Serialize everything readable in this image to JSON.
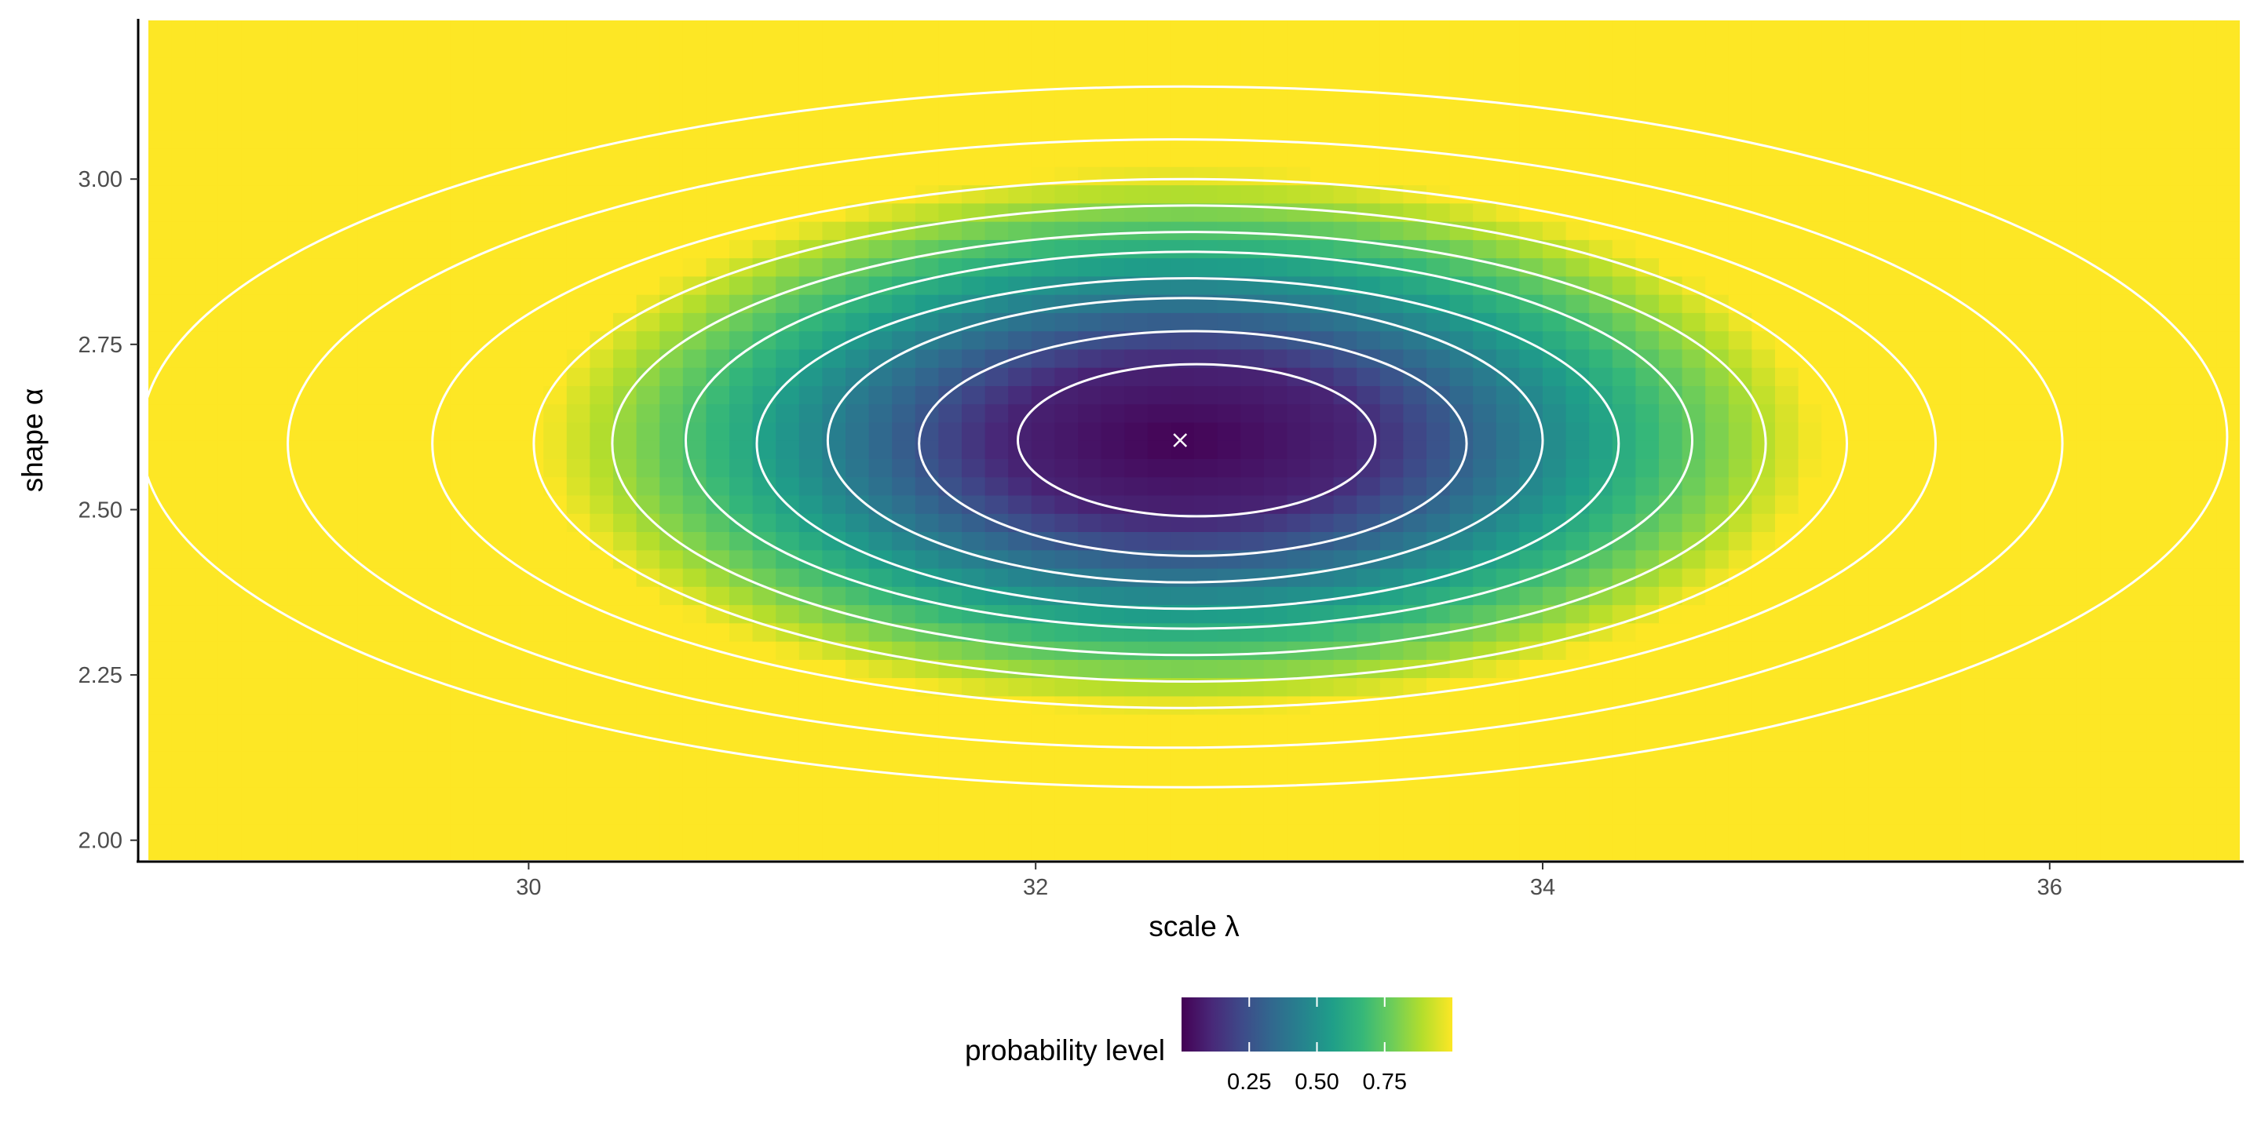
{
  "chart_data": {
    "type": "heatmap",
    "title": "",
    "xlabel": "scale λ",
    "ylabel": "shape α",
    "xlim": [
      28.5,
      36.75
    ],
    "ylim": [
      1.97,
      3.24
    ],
    "x_ticks": [
      {
        "value": 30,
        "label": "30"
      },
      {
        "value": 32,
        "label": "32"
      },
      {
        "value": 34,
        "label": "34"
      },
      {
        "value": 36,
        "label": "36"
      }
    ],
    "y_ticks": [
      {
        "value": 2.0,
        "label": "2.00"
      },
      {
        "value": 2.25,
        "label": "2.25"
      },
      {
        "value": 2.5,
        "label": "2.50"
      },
      {
        "value": 2.75,
        "label": "2.75"
      },
      {
        "value": 3.0,
        "label": "3.00"
      }
    ],
    "fill_variable": "probability level",
    "colormap": "viridis",
    "colormap_stops": [
      "#440154",
      "#482878",
      "#3E4A89",
      "#31688E",
      "#26828E",
      "#1F9E89",
      "#35B779",
      "#6DCD59",
      "#B4DE2C",
      "#FDE725"
    ],
    "fill_range": [
      0,
      1
    ],
    "optimum": {
      "x": 32.57,
      "y": 2.605,
      "marker": "×",
      "color": "#ffffff"
    },
    "contour_levels": [
      0.1,
      0.2,
      0.3,
      0.4,
      0.5,
      0.6,
      0.7,
      0.8,
      0.9,
      0.95
    ],
    "contours": [
      {
        "level": 0.1,
        "x_min": 31.93,
        "x_max": 33.34,
        "y_min": 2.49,
        "y_max": 2.72
      },
      {
        "level": 0.2,
        "x_min": 31.54,
        "x_max": 33.7,
        "y_min": 2.43,
        "y_max": 2.77
      },
      {
        "level": 0.3,
        "x_min": 31.18,
        "x_max": 34.0,
        "y_min": 2.39,
        "y_max": 2.82
      },
      {
        "level": 0.4,
        "x_min": 30.9,
        "x_max": 34.3,
        "y_min": 2.35,
        "y_max": 2.85
      },
      {
        "level": 0.5,
        "x_min": 30.62,
        "x_max": 34.59,
        "y_min": 2.32,
        "y_max": 2.89
      },
      {
        "level": 0.6,
        "x_min": 30.33,
        "x_max": 34.88,
        "y_min": 2.28,
        "y_max": 2.92
      },
      {
        "level": 0.7,
        "x_min": 30.02,
        "x_max": 35.2,
        "y_min": 2.24,
        "y_max": 2.96
      },
      {
        "level": 0.8,
        "x_min": 29.62,
        "x_max": 35.55,
        "y_min": 2.2,
        "y_max": 3.0
      },
      {
        "level": 0.9,
        "x_min": 29.05,
        "x_max": 36.05,
        "y_min": 2.14,
        "y_max": 3.06
      },
      {
        "level": 0.95,
        "x_min": 28.47,
        "x_max": 36.7,
        "y_min": 2.08,
        "y_max": 3.14
      }
    ],
    "contour_color": "#ffffff",
    "grid": false,
    "legend": {
      "title": "probability level",
      "position": "bottom",
      "ticks": [
        {
          "value": 0.25,
          "label": "0.25"
        },
        {
          "value": 0.5,
          "label": "0.50"
        },
        {
          "value": 0.75,
          "label": "0.75"
        }
      ]
    }
  }
}
